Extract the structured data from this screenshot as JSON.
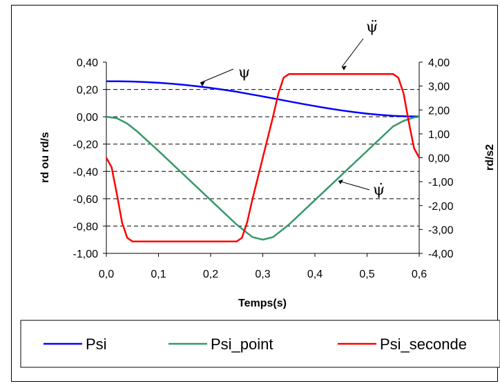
{
  "chart_data": {
    "type": "line",
    "xlabel": "Temps(s)",
    "ylabel_left": "rd ou rd/s",
    "ylabel_right": "rd/s2",
    "xlim": [
      0,
      0.6
    ],
    "ylim_left": [
      -1.0,
      0.4
    ],
    "ylim_right": [
      -4.0,
      4.0
    ],
    "x_ticks": [
      "0,0",
      "0,1",
      "0,2",
      "0,3",
      "0,4",
      "0,5",
      "0,6"
    ],
    "y_left_ticks": [
      "0,40",
      "0,20",
      "0,00",
      "-0,20",
      "-0,40",
      "-0,60",
      "-0,80",
      "-1,00"
    ],
    "y_right_ticks": [
      "4,00",
      "3,00",
      "2,00",
      "1,00",
      "0,00",
      "-1,00",
      "-2,00",
      "-3,00",
      "-4,00"
    ],
    "grid": "horizontal dashed",
    "legend_position": "bottom",
    "series": [
      {
        "name": "Psi",
        "axis": "left",
        "color": "#0000ff",
        "x": [
          0.0,
          0.025,
          0.05,
          0.075,
          0.1,
          0.125,
          0.15,
          0.175,
          0.2,
          0.225,
          0.25,
          0.275,
          0.3,
          0.325,
          0.35,
          0.375,
          0.4,
          0.425,
          0.45,
          0.475,
          0.5,
          0.525,
          0.55,
          0.575,
          0.6
        ],
        "y": [
          0.26,
          0.26,
          0.258,
          0.254,
          0.249,
          0.242,
          0.233,
          0.223,
          0.211,
          0.198,
          0.183,
          0.166,
          0.149,
          0.131,
          0.113,
          0.095,
          0.078,
          0.062,
          0.047,
          0.034,
          0.023,
          0.014,
          0.007,
          0.003,
          0.002
        ]
      },
      {
        "name": "Psi_point",
        "axis": "left",
        "color": "#339966",
        "x": [
          0.0,
          0.02,
          0.04,
          0.06,
          0.08,
          0.1,
          0.15,
          0.2,
          0.25,
          0.28,
          0.3,
          0.32,
          0.35,
          0.4,
          0.45,
          0.5,
          0.55,
          0.57,
          0.59,
          0.6
        ],
        "y": [
          0.0,
          -0.01,
          -0.05,
          -0.11,
          -0.18,
          -0.25,
          -0.43,
          -0.61,
          -0.79,
          -0.88,
          -0.9,
          -0.88,
          -0.79,
          -0.61,
          -0.43,
          -0.25,
          -0.07,
          -0.03,
          -0.005,
          0.0
        ]
      },
      {
        "name": "Psi_seconde",
        "axis": "right",
        "color": "#ff0000",
        "x": [
          0.0,
          0.01,
          0.02,
          0.03,
          0.04,
          0.05,
          0.25,
          0.26,
          0.27,
          0.28,
          0.3,
          0.32,
          0.33,
          0.34,
          0.35,
          0.55,
          0.56,
          0.57,
          0.58,
          0.59,
          0.6
        ],
        "y": [
          0.0,
          -0.4,
          -1.5,
          -2.7,
          -3.35,
          -3.5,
          -3.5,
          -3.35,
          -2.7,
          -1.75,
          0.0,
          1.75,
          2.7,
          3.35,
          3.5,
          3.5,
          3.35,
          2.7,
          1.5,
          0.4,
          0.0
        ]
      }
    ],
    "annotations": [
      {
        "text": "ψ",
        "x": 0.45,
        "y_left": 0.29
      },
      {
        "text": "ψ̇",
        "x": 0.46,
        "y_left": -0.53
      },
      {
        "text": "ψ̈",
        "x": 0.46,
        "y_left": 0.36
      }
    ]
  }
}
